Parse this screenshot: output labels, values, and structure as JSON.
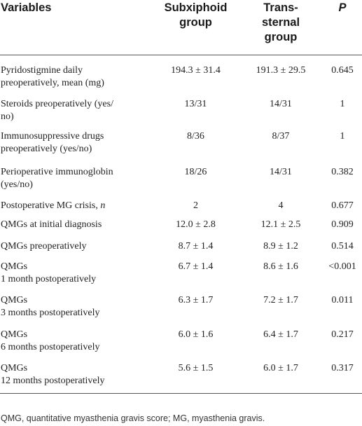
{
  "table": {
    "headers": [
      "Variables",
      "Subxiphoid group",
      "Trans-sternal group",
      "P"
    ],
    "header_lines": {
      "col2": [
        "Subxiphoid",
        "group"
      ],
      "col3": [
        "Trans-",
        "sternal",
        "group"
      ]
    },
    "rows": [
      {
        "variable": [
          "Pyridostigmine daily",
          "preoperatively, mean (mg)"
        ],
        "subxiphoid": "194.3 ± 31.4",
        "transsternal": "191.3 ± 29.5",
        "p": "0.645"
      },
      {
        "variable": [
          "Steroids preoperatively (yes/",
          "no)"
        ],
        "subxiphoid": "13/31",
        "transsternal": "14/31",
        "p": "1"
      },
      {
        "variable": [
          "Immunosuppressive drugs",
          "preoperatively (yes/no)"
        ],
        "subxiphoid": "8/36",
        "transsternal": "8/37",
        "p": "1"
      },
      {
        "variable": [
          "Perioperative immunoglobin",
          "(yes/no)"
        ],
        "subxiphoid": "18/26",
        "transsternal": "14/31",
        "p": "0.382"
      },
      {
        "variable": [
          "Postoperative MG crisis, "
        ],
        "variable_italic": "n",
        "subxiphoid": "2",
        "transsternal": "4",
        "p": "0.677"
      },
      {
        "variable": [
          "QMGs at initial diagnosis"
        ],
        "subxiphoid": "12.0 ± 2.8",
        "transsternal": "12.1 ± 2.5",
        "p": "0.909"
      },
      {
        "variable": [
          "QMGs preoperatively"
        ],
        "subxiphoid": "8.7 ± 1.4",
        "transsternal": "8.9 ± 1.2",
        "p": "0.514"
      },
      {
        "variable": [
          "QMGs",
          "1 month postoperatively"
        ],
        "subxiphoid": "6.7 ± 1.4",
        "transsternal": "8.6 ± 1.6",
        "p": "<0.001"
      },
      {
        "variable": [
          "QMGs",
          "3 months postoperatively"
        ],
        "subxiphoid": "6.3 ± 1.7",
        "transsternal": "7.2 ± 1.7",
        "p": "0.011"
      },
      {
        "variable": [
          "QMGs",
          "6 months postoperatively"
        ],
        "subxiphoid": "6.0 ± 1.6",
        "transsternal": "6.4 ± 1.7",
        "p": "0.217"
      },
      {
        "variable": [
          "QMGs",
          "12 months postoperatively"
        ],
        "subxiphoid": "5.6 ± 1.5",
        "transsternal": "6.0 ± 1.7",
        "p": "0.317"
      }
    ]
  },
  "footnote": "QMG, quantitative myasthenia gravis score; MG, myasthenia gravis."
}
